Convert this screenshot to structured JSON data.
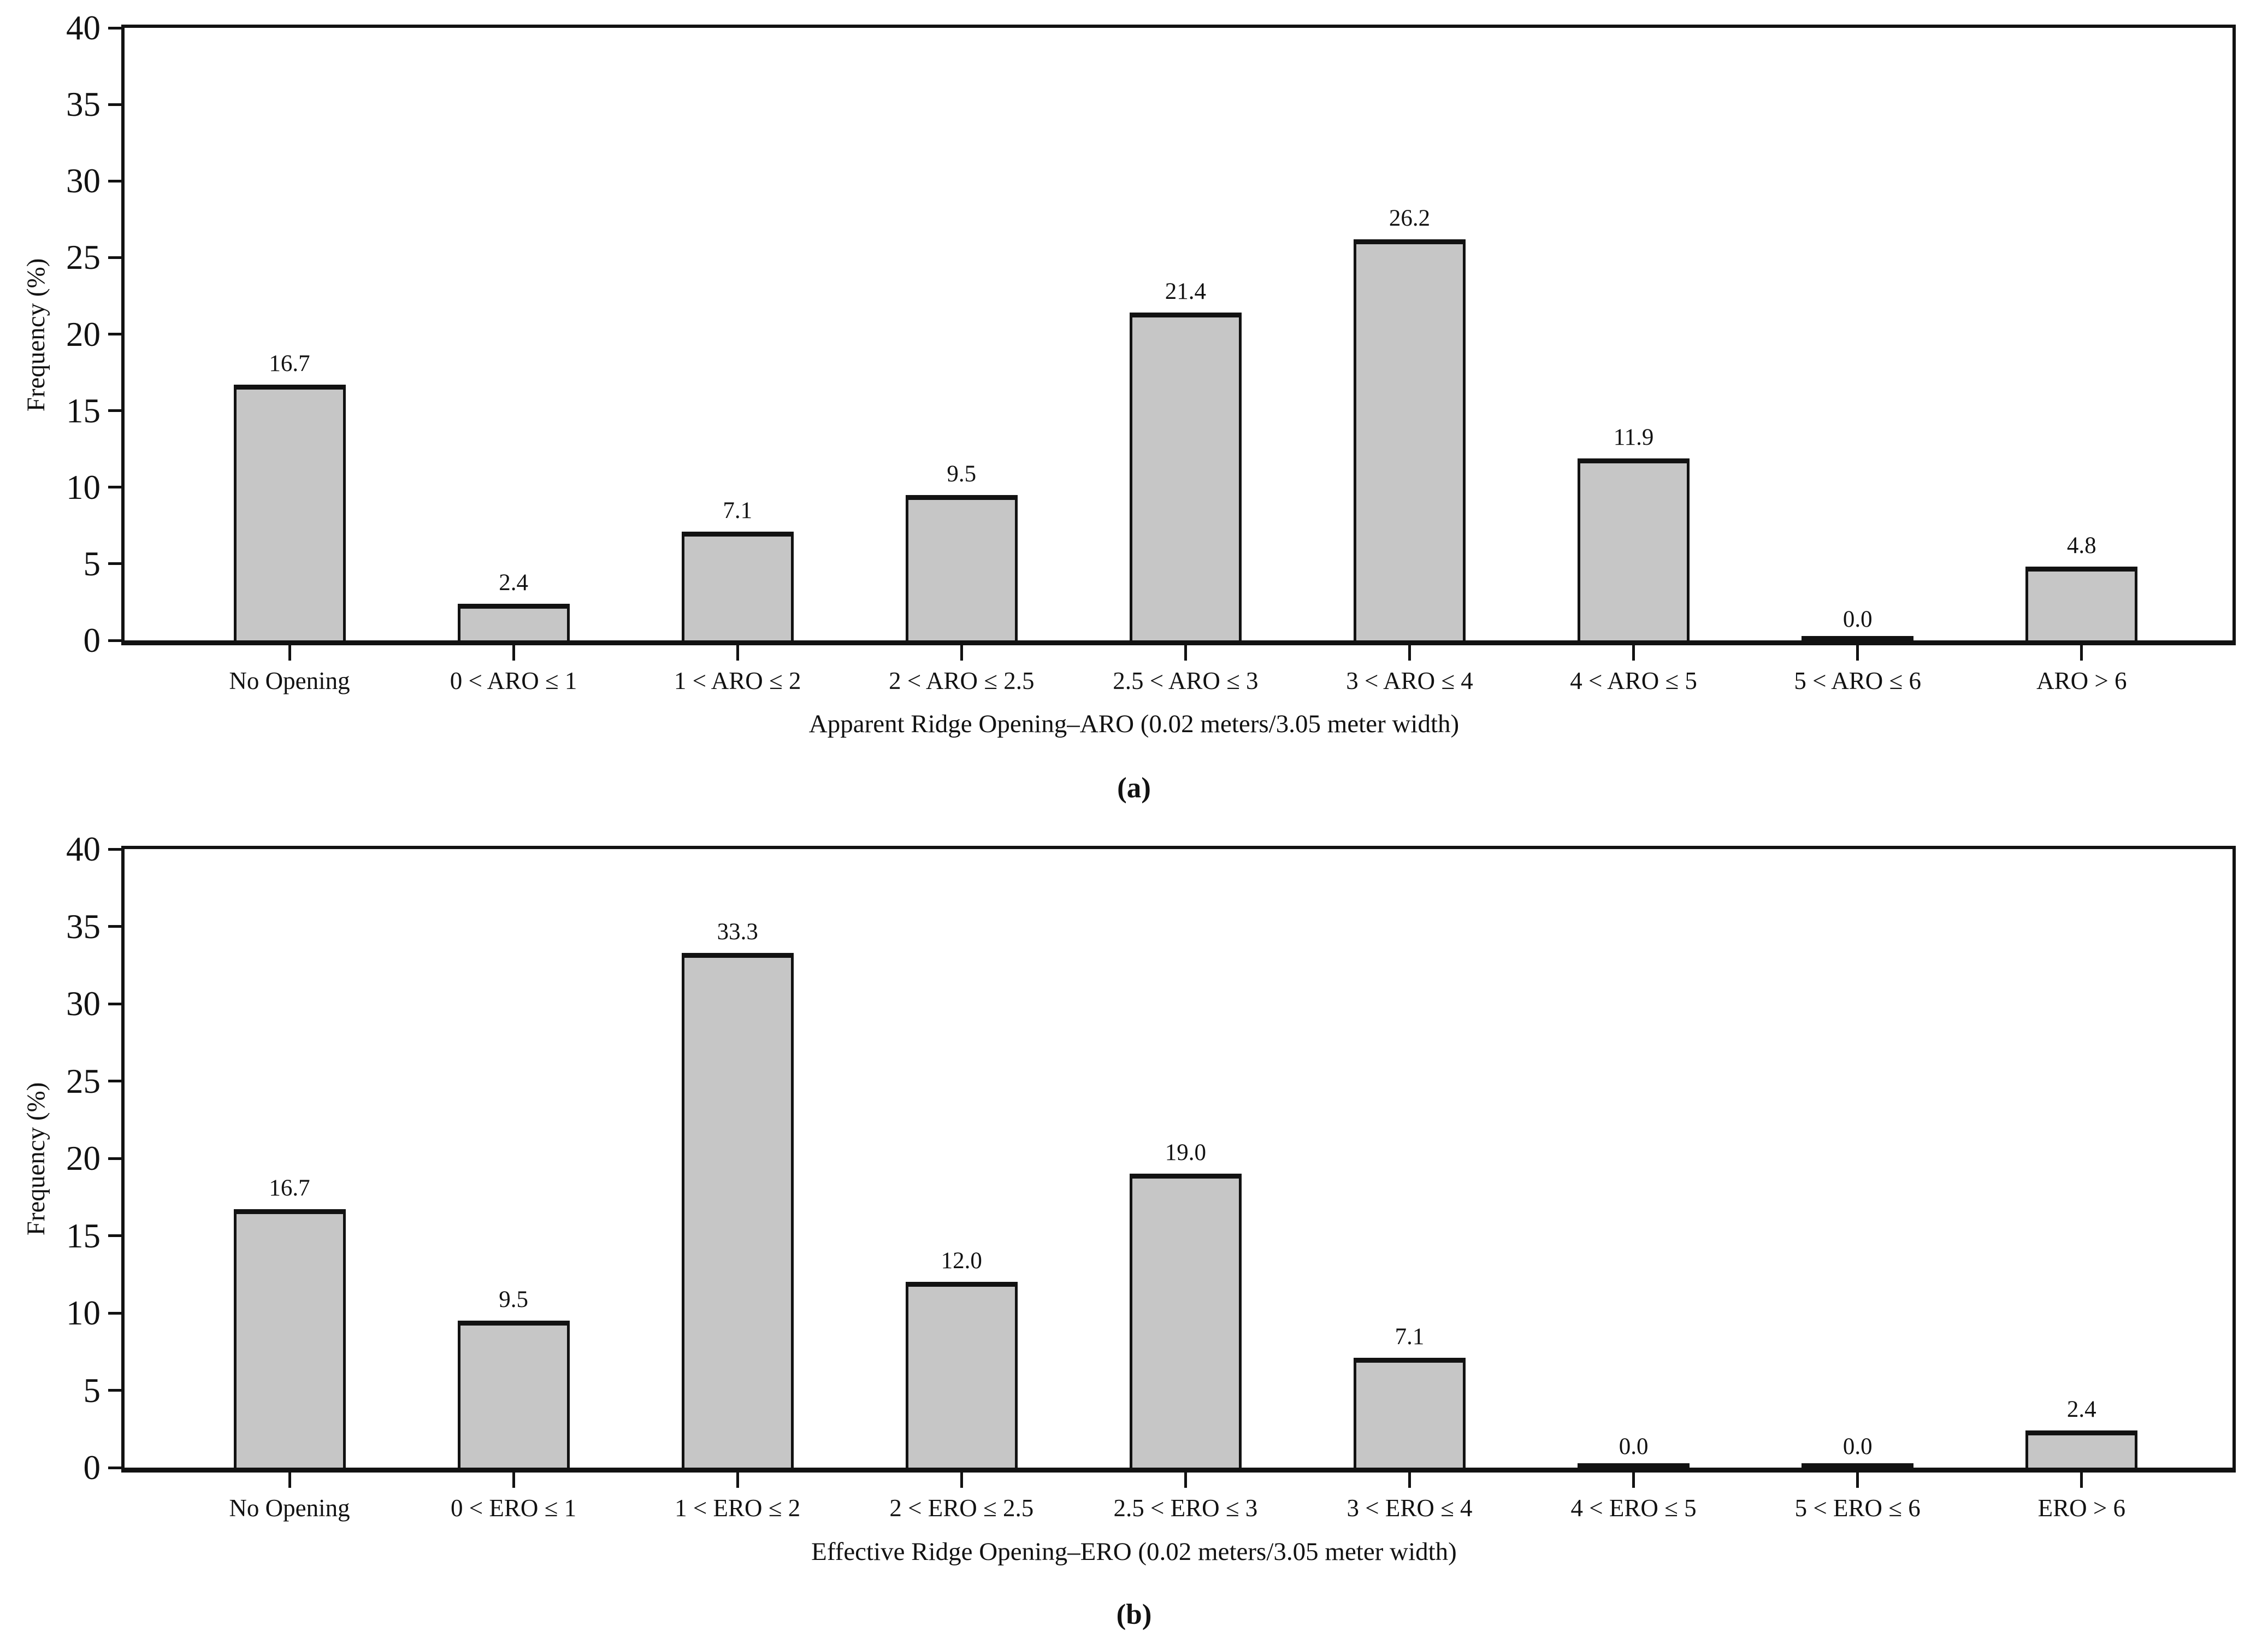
{
  "y_axis": {
    "title": "Frequency (%)",
    "ticks": [
      0,
      5,
      10,
      15,
      20,
      25,
      30,
      35,
      40
    ],
    "max": 40
  },
  "colors": {
    "bar_fill": "#c6c6c6",
    "bar_edge": "#121212",
    "axis": "#121212",
    "background": "#ffffff"
  },
  "chart_data": [
    {
      "type": "bar",
      "panel_label": "(a)",
      "title": "",
      "xlabel": "Apparent Ridge Opening–ARO (0.02 meters/3.05 meter width)",
      "ylabel": "Frequency (%)",
      "ylim": [
        0,
        40
      ],
      "yticks": [
        0,
        5,
        10,
        15,
        20,
        25,
        30,
        35,
        40
      ],
      "grid": false,
      "legend": "none",
      "categories": [
        "No Opening",
        "0 < ARO ≤ 1",
        "1 < ARO ≤ 2",
        "2 < ARO ≤ 2.5",
        "2.5 < ARO ≤ 3",
        "3 < ARO ≤ 4",
        "4 < ARO ≤ 5",
        "5 < ARO ≤ 6",
        "ARO > 6"
      ],
      "values": [
        16.7,
        2.4,
        7.1,
        9.5,
        21.4,
        26.2,
        11.9,
        0.0,
        4.8
      ],
      "value_labels": [
        "16.7",
        "2.4",
        "7.1",
        "9.5",
        "21.4",
        "26.2",
        "11.9",
        "0.0",
        "4.8"
      ]
    },
    {
      "type": "bar",
      "panel_label": "(b)",
      "title": "",
      "xlabel": "Effective Ridge Opening–ERO (0.02 meters/3.05 meter width)",
      "ylabel": "Frequency (%)",
      "ylim": [
        0,
        40
      ],
      "yticks": [
        0,
        5,
        10,
        15,
        20,
        25,
        30,
        35,
        40
      ],
      "grid": false,
      "legend": "none",
      "categories": [
        "No Opening",
        "0 < ERO ≤ 1",
        "1 < ERO ≤ 2",
        "2 < ERO ≤ 2.5",
        "2.5 < ERO ≤ 3",
        "3 < ERO ≤ 4",
        "4 < ERO ≤ 5",
        "5 < ERO ≤ 6",
        "ERO > 6"
      ],
      "values": [
        16.7,
        9.5,
        33.3,
        12.0,
        19.0,
        7.1,
        0.0,
        0.0,
        2.4
      ],
      "value_labels": [
        "16.7",
        "9.5",
        "33.3",
        "12.0",
        "19.0",
        "7.1",
        "0.0",
        "0.0",
        "2.4"
      ]
    }
  ]
}
